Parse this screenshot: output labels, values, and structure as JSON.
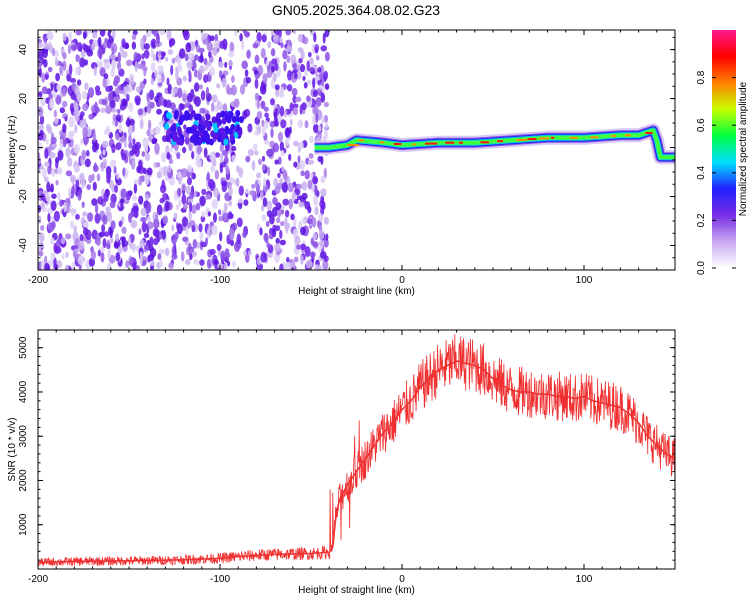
{
  "title": "GN05.2025.364.08.02.G23",
  "chart_data": [
    {
      "type": "heatmap",
      "xlabel": "Height of straight line (km)",
      "ylabel": "Frequency (Hz)",
      "xlim": [
        -200,
        150
      ],
      "ylim": [
        -50,
        48
      ],
      "xticks": [
        -200,
        -100,
        0,
        100
      ],
      "yticks": [
        -40,
        -20,
        0,
        20,
        40
      ],
      "colorbar": {
        "label": "Normalized spectral amplitude",
        "range": [
          0,
          1
        ],
        "ticks": [
          0.0,
          0.2,
          0.4,
          0.6,
          0.8
        ],
        "tick_labels": [
          "0.0",
          "0.2",
          "0.4",
          "0.6",
          "0.8"
        ],
        "colormap": [
          "#ffffff",
          "#c8a8f0",
          "#7a2ee6",
          "#2020ff",
          "#00e0ff",
          "#00ff40",
          "#c8ff00",
          "#ff8000",
          "#ff0000",
          "#ff1a8c"
        ]
      },
      "features": {
        "noise_region_x": [
          -200,
          -45
        ],
        "cluster": {
          "x_range": [
            -130,
            -88
          ],
          "freq": 8,
          "peak_amplitude": 0.35
        },
        "track": [
          {
            "x": -48,
            "freq": 0
          },
          {
            "x": -40,
            "freq": 0
          },
          {
            "x": -30,
            "freq": 1
          },
          {
            "x": -25,
            "freq": 3
          },
          {
            "x": -10,
            "freq": 2
          },
          {
            "x": 0,
            "freq": 1
          },
          {
            "x": 20,
            "freq": 2
          },
          {
            "x": 40,
            "freq": 2
          },
          {
            "x": 60,
            "freq": 3
          },
          {
            "x": 80,
            "freq": 4
          },
          {
            "x": 100,
            "freq": 4
          },
          {
            "x": 120,
            "freq": 5
          },
          {
            "x": 130,
            "freq": 5
          },
          {
            "x": 138,
            "freq": 7
          },
          {
            "x": 140,
            "freq": 3
          },
          {
            "x": 142,
            "freq": -4
          },
          {
            "x": 150,
            "freq": -4
          }
        ],
        "track_peak_amplitude": 0.9
      }
    },
    {
      "type": "line",
      "xlabel": "Height of straight line (km)",
      "ylabel": "SNR (10 * v/v)",
      "xlim": [
        -200,
        150
      ],
      "ylim": [
        0,
        5400
      ],
      "xticks": [
        -200,
        -100,
        0,
        100
      ],
      "yticks": [
        1000,
        2000,
        3000,
        4000,
        5000
      ],
      "color": "#f03030",
      "series": [
        {
          "x": [
            -200,
            -180,
            -160,
            -140,
            -120,
            -100,
            -90,
            -80,
            -70,
            -60,
            -50,
            -40,
            -38,
            -36,
            -34,
            -30,
            -25,
            -20,
            -15,
            -10,
            -5,
            0,
            5,
            10,
            15,
            20,
            25,
            30,
            35,
            40,
            45,
            50,
            55,
            60,
            65,
            70,
            75,
            80,
            85,
            90,
            95,
            100,
            105,
            110,
            115,
            120,
            125,
            130,
            135,
            140,
            145,
            150
          ],
          "values": [
            150,
            170,
            180,
            190,
            210,
            240,
            280,
            310,
            330,
            340,
            350,
            380,
            500,
            1300,
            1600,
            1900,
            2200,
            2500,
            2800,
            3100,
            3300,
            3600,
            3800,
            4100,
            4300,
            4500,
            4600,
            4700,
            4650,
            4600,
            4500,
            4300,
            4150,
            4050,
            4000,
            4000,
            3950,
            3950,
            3900,
            3900,
            3850,
            3900,
            3800,
            3750,
            3700,
            3650,
            3500,
            3300,
            3000,
            2800,
            2600,
            2500
          ]
        }
      ]
    }
  ]
}
